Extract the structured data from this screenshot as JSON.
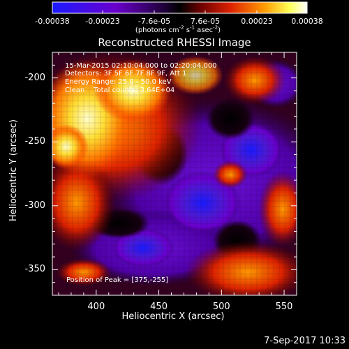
{
  "colorbar": {
    "tick_labels": [
      "-0.00038",
      "-0.00023",
      "-7.6e-05",
      "7.6e-05",
      "0.00023",
      "0.00038"
    ],
    "tick_values": [
      -0.00038,
      -0.00023,
      -7.6e-05,
      7.6e-05,
      0.00023,
      0.00038
    ],
    "range": [
      -0.00038,
      0.00038
    ],
    "units_prefix": "(photons cm",
    "units_exp1": "-2",
    "units_mid": " s",
    "units_exp2": "-1",
    "units_mid2": " asec",
    "units_exp3": "-2",
    "units_suffix": ")",
    "colors": [
      "#1a1aff",
      "#6a00cc",
      "#000000",
      "#cc2200",
      "#ff8800",
      "#ffff66",
      "#ffffff"
    ]
  },
  "title": "Reconstructed RHESSI Image",
  "info": {
    "line1": "15-Mar-2015 02:10:04.000 to 02:20:04.000",
    "line2": "Detectors: 3F 5F 6F 7F 8F 9F, Att 1",
    "line3": "Energy Range: 25.0 - 50.0 keV",
    "line4": "Clean    Total counts: 3.64E+04"
  },
  "peak": "Position of Peak = [375,-255]",
  "axes": {
    "xlabel": "Heliocentric X (arcsec)",
    "ylabel": "Heliocentric Y (arcsec)",
    "x_ticks": [
      "400",
      "450",
      "500",
      "550"
    ],
    "x_tick_values": [
      400,
      450,
      500,
      550
    ],
    "y_ticks": [
      "-200",
      "-250",
      "-300",
      "-350"
    ],
    "y_tick_values": [
      -200,
      -250,
      -300,
      -350
    ],
    "xlim": [
      365,
      560
    ],
    "ylim": [
      -370,
      -180
    ]
  },
  "timestamp": "7-Sep-2017 10:33"
}
